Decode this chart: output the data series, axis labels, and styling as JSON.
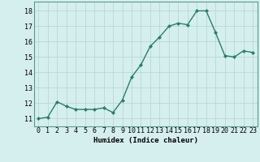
{
  "x": [
    0,
    1,
    2,
    3,
    4,
    5,
    6,
    7,
    8,
    9,
    10,
    11,
    12,
    13,
    14,
    15,
    16,
    17,
    18,
    19,
    20,
    21,
    22,
    23
  ],
  "y": [
    11.0,
    11.1,
    12.1,
    11.8,
    11.6,
    11.6,
    11.6,
    11.7,
    11.4,
    12.2,
    13.7,
    14.5,
    15.7,
    16.3,
    17.0,
    17.2,
    17.1,
    18.0,
    18.0,
    16.6,
    15.1,
    15.0,
    15.4,
    15.3
  ],
  "line_color": "#2a7d6e",
  "marker": "D",
  "marker_size": 2.0,
  "bg_color": "#d5efee",
  "grid_color": "#b8d8d5",
  "xlabel": "Humidex (Indice chaleur)",
  "ylim": [
    10.5,
    18.6
  ],
  "xlim": [
    -0.5,
    23.5
  ],
  "yticks": [
    11,
    12,
    13,
    14,
    15,
    16,
    17,
    18
  ],
  "xticks": [
    0,
    1,
    2,
    3,
    4,
    5,
    6,
    7,
    8,
    9,
    10,
    11,
    12,
    13,
    14,
    15,
    16,
    17,
    18,
    19,
    20,
    21,
    22,
    23
  ],
  "xlabel_fontsize": 6.5,
  "tick_fontsize": 6.0,
  "line_width": 1.0,
  "spine_color": "#5a9a8a"
}
